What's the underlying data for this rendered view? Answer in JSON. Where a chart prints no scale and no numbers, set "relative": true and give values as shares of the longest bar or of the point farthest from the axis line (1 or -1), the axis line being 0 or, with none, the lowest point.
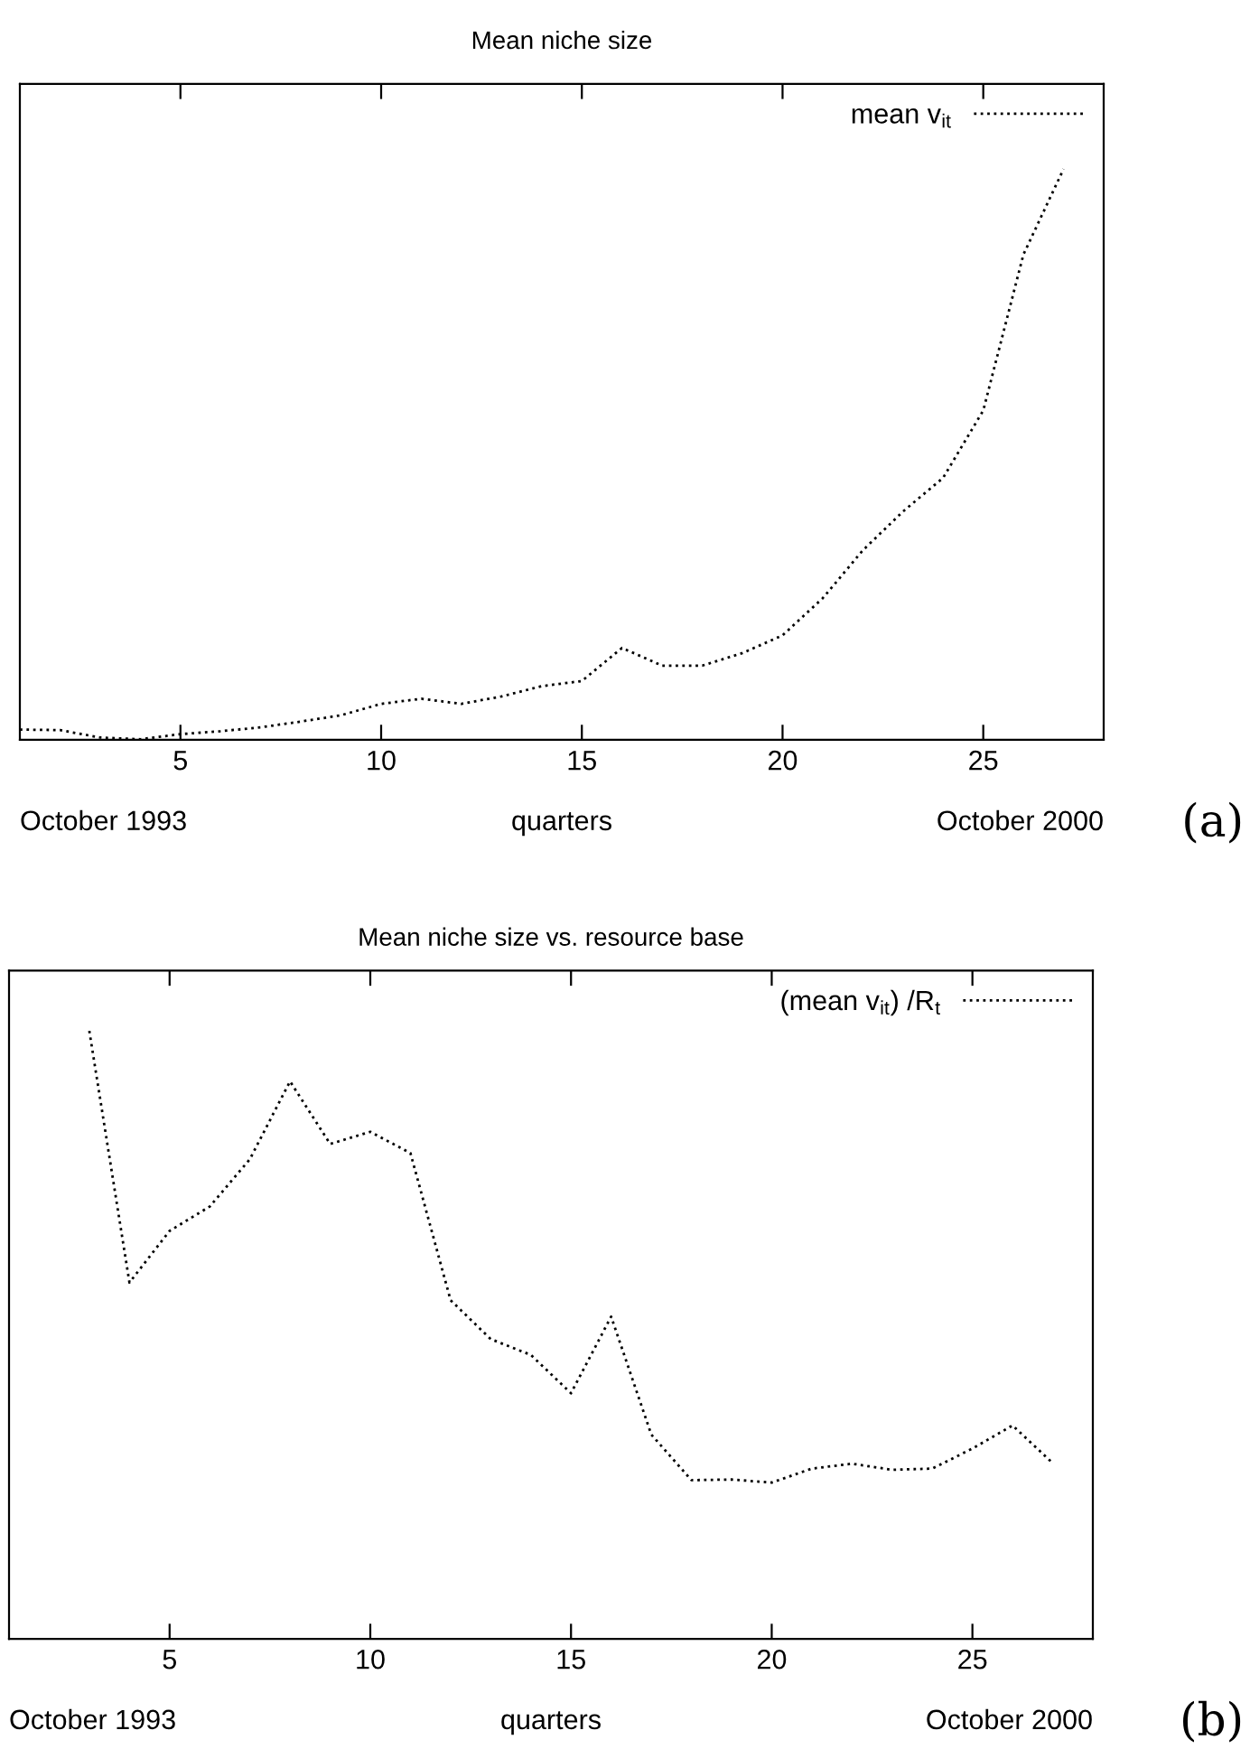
{
  "chart_data": [
    {
      "type": "line",
      "title": "Mean niche size",
      "xlabel": "quarters",
      "relative": true,
      "x": [
        1,
        2,
        3,
        4,
        5,
        6,
        7,
        8,
        9,
        10,
        11,
        12,
        13,
        14,
        15,
        16,
        17,
        18,
        19,
        20,
        21,
        22,
        23,
        24,
        25,
        26,
        27
      ],
      "series": [
        {
          "name": "mean v$_{it}$",
          "color": "#000000",
          "values": [
            0.018,
            0.017,
            0.004,
            0.001,
            0.01,
            0.015,
            0.022,
            0.032,
            0.043,
            0.063,
            0.072,
            0.063,
            0.076,
            0.094,
            0.103,
            0.161,
            0.13,
            0.13,
            0.152,
            0.183,
            0.248,
            0.332,
            0.4,
            0.459,
            0.577,
            0.85,
            1.0
          ]
        }
      ],
      "xlim": [
        1,
        28
      ],
      "xticks": [
        5,
        10,
        15,
        20,
        25
      ],
      "legend": "top right",
      "line_style": "dotted",
      "marker": "none",
      "grid": false,
      "annotations": [
        "October 1993",
        "October 2000",
        "(a)"
      ]
    },
    {
      "type": "line",
      "title": "Mean niche size vs. resource base",
      "xlabel": "quarters",
      "relative": true,
      "series": [
        {
          "name": "(mean v$_{it}$) /R$_{t}$",
          "color": "#000000",
          "x": [
            3,
            4,
            5,
            6,
            7,
            8,
            9,
            10,
            11,
            12,
            13,
            14,
            15,
            16,
            17,
            18,
            19,
            20,
            21,
            22,
            23,
            24,
            25,
            26,
            27
          ],
          "values": [
            1.0,
            0.586,
            0.671,
            0.711,
            0.789,
            0.917,
            0.814,
            0.834,
            0.799,
            0.557,
            0.493,
            0.467,
            0.404,
            0.53,
            0.336,
            0.261,
            0.262,
            0.257,
            0.28,
            0.288,
            0.278,
            0.28,
            0.313,
            0.351,
            0.289
          ]
        }
      ],
      "xlim": [
        1,
        28
      ],
      "xticks": [
        5,
        10,
        15,
        20,
        25
      ],
      "legend": "top right",
      "line_style": "dotted",
      "marker": "none",
      "grid": false,
      "annotations": [
        "October 1993",
        "October 2000",
        "(b)"
      ]
    }
  ]
}
